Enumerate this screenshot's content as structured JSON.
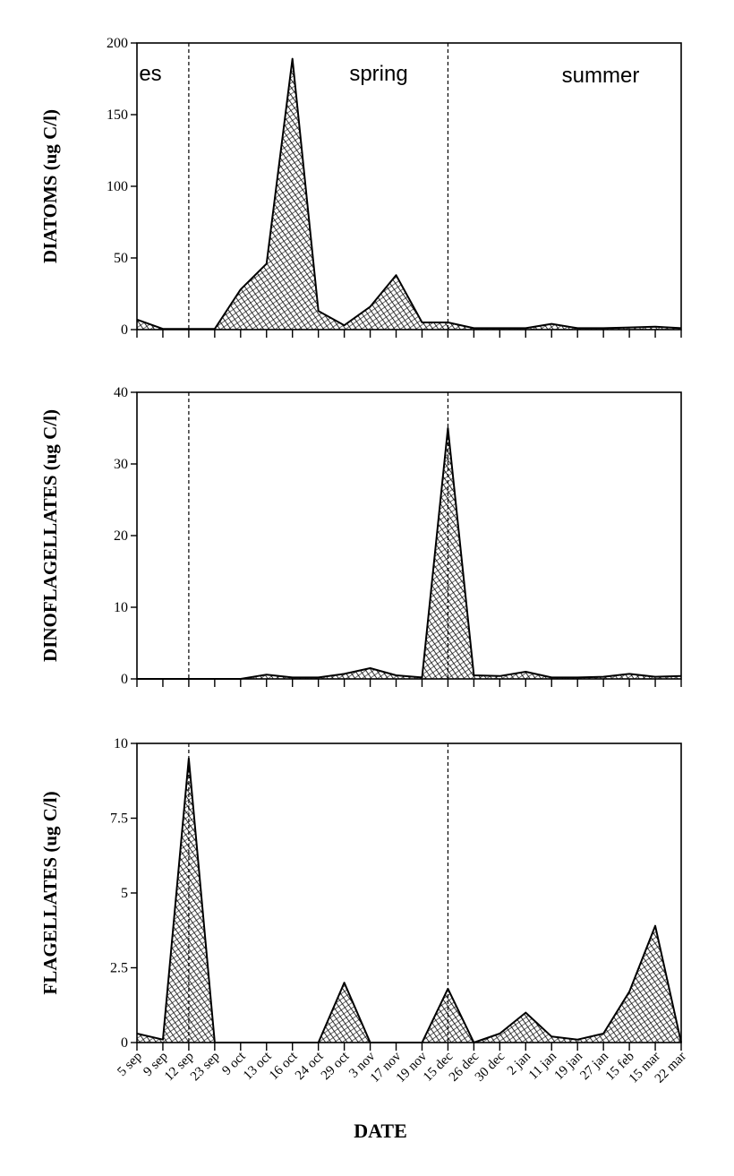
{
  "chart_data": {
    "type": "area",
    "xlabel": "DATE",
    "categories": [
      "5 sep",
      "9 sep",
      "12 sep",
      "23 sep",
      "9 oct",
      "13 oct",
      "16 oct",
      "24 oct",
      "29 oct",
      "3 nov",
      "17 nov",
      "19 nov",
      "15 dec",
      "26 dec",
      "30 dec",
      "2 jan",
      "11 jan",
      "19 jan",
      "27 jan",
      "15 feb",
      "15 mar",
      "22 mar"
    ],
    "season_dividers_after_index": [
      2,
      12
    ],
    "seasons": [
      "es",
      "spring",
      "summer"
    ],
    "panels": [
      {
        "ylabel": "DIATOMS (ug C/l)",
        "ylim": [
          0,
          200
        ],
        "yticks": [
          0,
          50,
          100,
          150,
          200
        ],
        "ytick_labels": [
          "0",
          "50",
          "100",
          "150",
          "200"
        ],
        "dividers": [
          2,
          12
        ],
        "show_seasons": true,
        "show_xtick_labels": false,
        "values": [
          7,
          0.5,
          0.5,
          0.5,
          28,
          46,
          189,
          13,
          3,
          16,
          38,
          5,
          5,
          1,
          1,
          1,
          4,
          1,
          1,
          1.5,
          2,
          1
        ]
      },
      {
        "ylabel": "DINOFLAGELLATES (ug C/l)",
        "ylim": [
          0,
          40
        ],
        "yticks": [
          0,
          10,
          20,
          30,
          40
        ],
        "ytick_labels": [
          "0",
          "10",
          "20",
          "30",
          "40"
        ],
        "dividers": [
          2,
          12
        ],
        "show_seasons": false,
        "show_xtick_labels": false,
        "values": [
          0,
          0,
          0,
          0,
          0,
          0.6,
          0.2,
          0.2,
          0.7,
          1.5,
          0.5,
          0.2,
          35,
          0.5,
          0.4,
          1,
          0.2,
          0.2,
          0.3,
          0.7,
          0.3,
          0.4
        ]
      },
      {
        "ylabel": "FLAGELLATES (ug C/l)",
        "ylim": [
          0,
          10
        ],
        "yticks": [
          0,
          2.5,
          5,
          7.5,
          10
        ],
        "ytick_labels": [
          "0",
          "2.5",
          "5",
          "7.5",
          "10"
        ],
        "dividers": [
          2,
          12
        ],
        "show_seasons": false,
        "show_xtick_labels": true,
        "values": [
          0.3,
          0.1,
          9.5,
          0,
          0,
          0,
          0,
          0,
          2,
          0,
          0,
          0,
          1.8,
          0,
          0.3,
          1,
          0.2,
          0.1,
          0.3,
          1.7,
          3.9,
          0
        ]
      }
    ]
  }
}
